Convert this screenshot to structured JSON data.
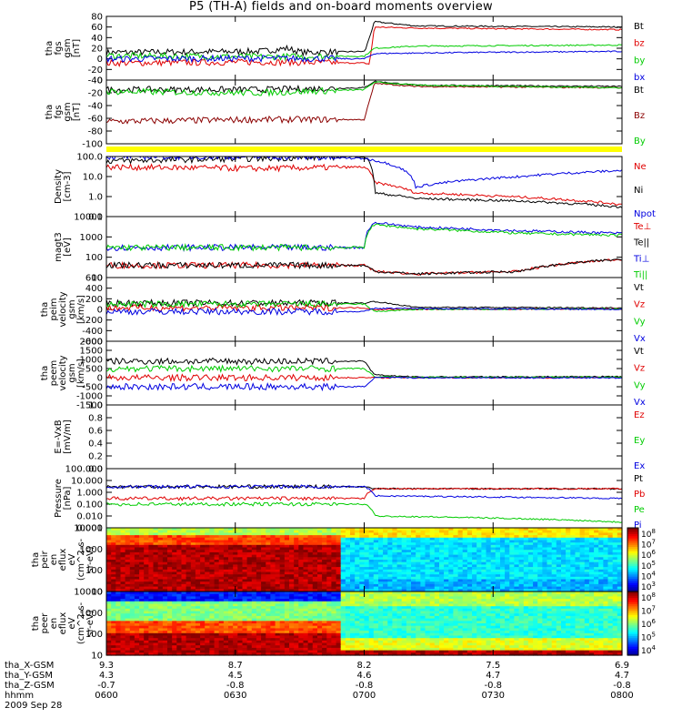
{
  "title": "P5 (TH-A) fields and on-board moments overview",
  "colors": {
    "black": "#000000",
    "red": "#e00000",
    "green": "#00cc00",
    "blue": "#0000e0",
    "darkred": "#8b0000",
    "yellow": "#ffff00"
  },
  "chart_data": [
    {
      "type": "line",
      "ylabel": [
        "tha",
        "fgs",
        "gsm",
        "[nT]"
      ],
      "ylim": [
        -40,
        80
      ],
      "yticks": [
        "80",
        "60",
        "40",
        "20",
        "0",
        "-20",
        "-40"
      ],
      "series": [
        {
          "name": "Bt",
          "color": "black",
          "points": [
            [
              0,
              12
            ],
            [
              0.3,
              14
            ],
            [
              0.35,
              20
            ],
            [
              0.38,
              12
            ],
            [
              0.5,
              14
            ],
            [
              0.5,
              10
            ],
            [
              0.52,
              70
            ],
            [
              0.6,
              62
            ],
            [
              1,
              60
            ]
          ]
        },
        {
          "name": "bz",
          "color": "red",
          "points": [
            [
              0,
              -8
            ],
            [
              0.3,
              -6
            ],
            [
              0.5,
              -8
            ],
            [
              0.51,
              -10
            ],
            [
              0.52,
              60
            ],
            [
              0.6,
              58
            ],
            [
              1,
              55
            ]
          ]
        },
        {
          "name": "by",
          "color": "green",
          "points": [
            [
              0,
              6
            ],
            [
              0.3,
              4
            ],
            [
              0.5,
              5
            ],
            [
              0.52,
              20
            ],
            [
              0.6,
              24
            ],
            [
              1,
              26
            ]
          ]
        },
        {
          "name": "bx",
          "color": "blue",
          "points": [
            [
              0,
              0
            ],
            [
              0.3,
              1
            ],
            [
              0.5,
              0
            ],
            [
              0.52,
              10
            ],
            [
              0.7,
              12
            ],
            [
              1,
              14
            ]
          ]
        }
      ]
    },
    {
      "type": "line",
      "ylabel": [
        "tha",
        "fgs",
        "gsm",
        "[nT]"
      ],
      "ylim": [
        -100,
        0
      ],
      "yticks": [
        "0",
        "-20",
        "-40",
        "-60",
        "-80",
        "-100"
      ],
      "series": [
        {
          "name": "Bt",
          "color": "black",
          "points": [
            [
              0,
              -15
            ],
            [
              0.3,
              -15
            ],
            [
              0.5,
              -12
            ],
            [
              0.52,
              -2
            ],
            [
              0.6,
              -8
            ],
            [
              1,
              -10
            ]
          ]
        },
        {
          "name": "Bz",
          "color": "darkred",
          "points": [
            [
              0,
              -65
            ],
            [
              0.3,
              -62
            ],
            [
              0.5,
              -62
            ],
            [
              0.52,
              -5
            ],
            [
              0.6,
              -10
            ],
            [
              1,
              -12
            ]
          ]
        },
        {
          "name": "By",
          "color": "green",
          "points": [
            [
              0,
              -18
            ],
            [
              0.3,
              -20
            ],
            [
              0.5,
              -15
            ],
            [
              0.52,
              -3
            ],
            [
              0.6,
              -8
            ],
            [
              1,
              -12
            ]
          ]
        }
      ]
    },
    {
      "type": "line",
      "ylabel": [
        "Density",
        "[cm-3]"
      ],
      "scale": "log",
      "ylim": [
        0.1,
        100
      ],
      "yticks": [
        "100.0",
        "10.0",
        "1.0",
        "0.1"
      ],
      "series": [
        {
          "name": "Ne",
          "color": "red",
          "points": [
            [
              0,
              30
            ],
            [
              0.3,
              25
            ],
            [
              0.5,
              30
            ],
            [
              0.52,
              5
            ],
            [
              0.6,
              1.5
            ],
            [
              1,
              0.4
            ]
          ]
        },
        {
          "name": "Ni",
          "color": "black",
          "points": [
            [
              0,
              60
            ],
            [
              0.3,
              80
            ],
            [
              0.5,
              100
            ],
            [
              0.52,
              1.5
            ],
            [
              0.6,
              0.8
            ],
            [
              0.8,
              0.6
            ],
            [
              1,
              0.3
            ]
          ]
        },
        {
          "name": "Npot",
          "color": "blue",
          "points": [
            [
              0,
              100
            ],
            [
              0.3,
              100
            ],
            [
              0.5,
              80
            ],
            [
              0.6,
              3
            ],
            [
              0.8,
              10
            ],
            [
              1,
              20
            ]
          ]
        }
      ]
    },
    {
      "type": "line",
      "ylabel": [
        "magt3",
        "[eV]"
      ],
      "scale": "log",
      "ylim": [
        10,
        10000
      ],
      "yticks": [
        "10000",
        "1000",
        "100",
        "10"
      ],
      "series": [
        {
          "name": "Te⊥",
          "color": "red",
          "points": [
            [
              0,
              40
            ],
            [
              0.5,
              40
            ],
            [
              0.52,
              20
            ],
            [
              0.6,
              15
            ],
            [
              0.8,
              20
            ],
            [
              1,
              80
            ]
          ]
        },
        {
          "name": "Te||",
          "color": "black",
          "points": [
            [
              0,
              40
            ],
            [
              0.5,
              40
            ],
            [
              0.52,
              20
            ],
            [
              0.6,
              15
            ],
            [
              0.8,
              20
            ],
            [
              1,
              80
            ]
          ]
        },
        {
          "name": "Ti⊥",
          "color": "blue",
          "points": [
            [
              0,
              300
            ],
            [
              0.5,
              300
            ],
            [
              0.52,
              5000
            ],
            [
              0.6,
              3000
            ],
            [
              0.8,
              2000
            ],
            [
              1,
              1500
            ]
          ]
        },
        {
          "name": "Ti||",
          "color": "green",
          "points": [
            [
              0,
              300
            ],
            [
              0.5,
              300
            ],
            [
              0.52,
              4000
            ],
            [
              0.6,
              2500
            ],
            [
              0.8,
              1500
            ],
            [
              1,
              1200
            ]
          ]
        }
      ]
    },
    {
      "type": "line",
      "ylabel": [
        "tha",
        "peim",
        "velocity",
        "gsm",
        "[km/s]"
      ],
      "ylim": [
        -600,
        600
      ],
      "yticks": [
        "600",
        "400",
        "200",
        "0",
        "-200",
        "-400",
        "-600"
      ],
      "series": [
        {
          "name": "Vt",
          "color": "black",
          "points": [
            [
              0,
              120
            ],
            [
              0.5,
              120
            ],
            [
              0.52,
              150
            ],
            [
              0.6,
              40
            ],
            [
              1,
              30
            ]
          ]
        },
        {
          "name": "Vz",
          "color": "red",
          "points": [
            [
              0,
              30
            ],
            [
              0.5,
              30
            ],
            [
              0.52,
              0
            ],
            [
              1,
              10
            ]
          ]
        },
        {
          "name": "Vy",
          "color": "green",
          "points": [
            [
              0,
              100
            ],
            [
              0.5,
              100
            ],
            [
              0.52,
              -40
            ],
            [
              0.6,
              0
            ],
            [
              1,
              10
            ]
          ]
        },
        {
          "name": "Vx",
          "color": "blue",
          "points": [
            [
              0,
              -40
            ],
            [
              0.5,
              -40
            ],
            [
              0.52,
              20
            ],
            [
              1,
              0
            ]
          ]
        }
      ]
    },
    {
      "type": "line",
      "ylabel": [
        "tha",
        "peem",
        "velocity",
        "gsm",
        "[km/s]"
      ],
      "ylim": [
        -1500,
        2000
      ],
      "yticks": [
        "2000",
        "1500",
        "1000",
        "500",
        "0",
        "-500",
        "-1000",
        "-1500"
      ],
      "series": [
        {
          "name": "Vt",
          "color": "black",
          "points": [
            [
              0,
              900
            ],
            [
              0.5,
              900
            ],
            [
              0.52,
              150
            ],
            [
              0.6,
              40
            ],
            [
              1,
              60
            ]
          ]
        },
        {
          "name": "Vz",
          "color": "red",
          "points": [
            [
              0,
              0
            ],
            [
              0.5,
              0
            ],
            [
              0.52,
              0
            ],
            [
              1,
              0
            ]
          ]
        },
        {
          "name": "Vy",
          "color": "green",
          "points": [
            [
              0,
              500
            ],
            [
              0.5,
              500
            ],
            [
              0.52,
              50
            ],
            [
              0.6,
              20
            ],
            [
              1,
              30
            ]
          ]
        },
        {
          "name": "Vx",
          "color": "blue",
          "points": [
            [
              0,
              -500
            ],
            [
              0.5,
              -500
            ],
            [
              0.52,
              0
            ],
            [
              1,
              -10
            ]
          ]
        }
      ]
    },
    {
      "type": "line",
      "ylabel": [
        "E=-VxB",
        "[mV/m]"
      ],
      "ylim": [
        0,
        1
      ],
      "yticks": [
        "1.0",
        "0.8",
        "0.6",
        "0.4",
        "0.2",
        "0.0"
      ],
      "series": [
        {
          "name": "Ez",
          "color": "red",
          "points": []
        },
        {
          "name": "Ey",
          "color": "green",
          "points": []
        },
        {
          "name": "Ex",
          "color": "blue",
          "points": []
        }
      ]
    },
    {
      "type": "line",
      "ylabel": [
        "Pressure",
        "[nPa]"
      ],
      "scale": "log",
      "ylim": [
        0.001,
        100
      ],
      "yticks": [
        "100.000",
        "10.000",
        "1.000",
        "0.100",
        "0.010",
        "0.001"
      ],
      "series": [
        {
          "name": "Pt",
          "color": "black",
          "points": [
            [
              0,
              3
            ],
            [
              0.5,
              3
            ],
            [
              0.52,
              2
            ],
            [
              1,
              2
            ]
          ]
        },
        {
          "name": "Pb",
          "color": "red",
          "points": [
            [
              0,
              0.3
            ],
            [
              0.5,
              0.3
            ],
            [
              0.52,
              2
            ],
            [
              1,
              2
            ]
          ]
        },
        {
          "name": "Pe",
          "color": "green",
          "points": [
            [
              0,
              0.1
            ],
            [
              0.5,
              0.1
            ],
            [
              0.52,
              0.01
            ],
            [
              1,
              0.003
            ]
          ]
        },
        {
          "name": "Pi",
          "color": "blue",
          "points": [
            [
              0,
              3
            ],
            [
              0.5,
              3
            ],
            [
              0.52,
              0.5
            ],
            [
              1,
              0.3
            ]
          ]
        }
      ]
    },
    {
      "type": "heatmap",
      "ylabel": [
        "tha",
        "peir",
        "en",
        "eflux",
        "eV",
        "(cm^2-s-",
        "sr-eV)"
      ],
      "scale": "log",
      "ylim": [
        10,
        10000
      ],
      "yticks": [
        "10000",
        "1000",
        "100",
        "10"
      ],
      "colorbar_ticks": [
        "10^8",
        "10^7",
        "10^6",
        "10^5",
        "10^4",
        "10^3"
      ]
    },
    {
      "type": "heatmap",
      "ylabel": [
        "tha",
        "peer",
        "en",
        "eflux",
        "eV",
        "(cm^2-s-",
        "sr-eV)"
      ],
      "scale": "log",
      "ylim": [
        10,
        10000
      ],
      "yticks": [
        "10000",
        "1000",
        "100",
        "10"
      ],
      "colorbar_ticks": [
        "10^8",
        "10^7",
        "10^6",
        "10^5",
        "10^4"
      ]
    }
  ],
  "ephemeris": {
    "labels": [
      "tha_X-GSM",
      "tha_Y-GSM",
      "tha_Z-GSM",
      "hhmm",
      "2009 Sep 28"
    ],
    "columns": [
      [
        "9.3",
        "4.3",
        "-0.7",
        "0600"
      ],
      [
        "8.7",
        "4.5",
        "-0.8",
        "0630"
      ],
      [
        "8.2",
        "4.6",
        "-0.8",
        "0700"
      ],
      [
        "7.5",
        "4.7",
        "-0.8",
        "0730"
      ],
      [
        "6.9",
        "4.7",
        "-0.8",
        "0800"
      ]
    ]
  }
}
